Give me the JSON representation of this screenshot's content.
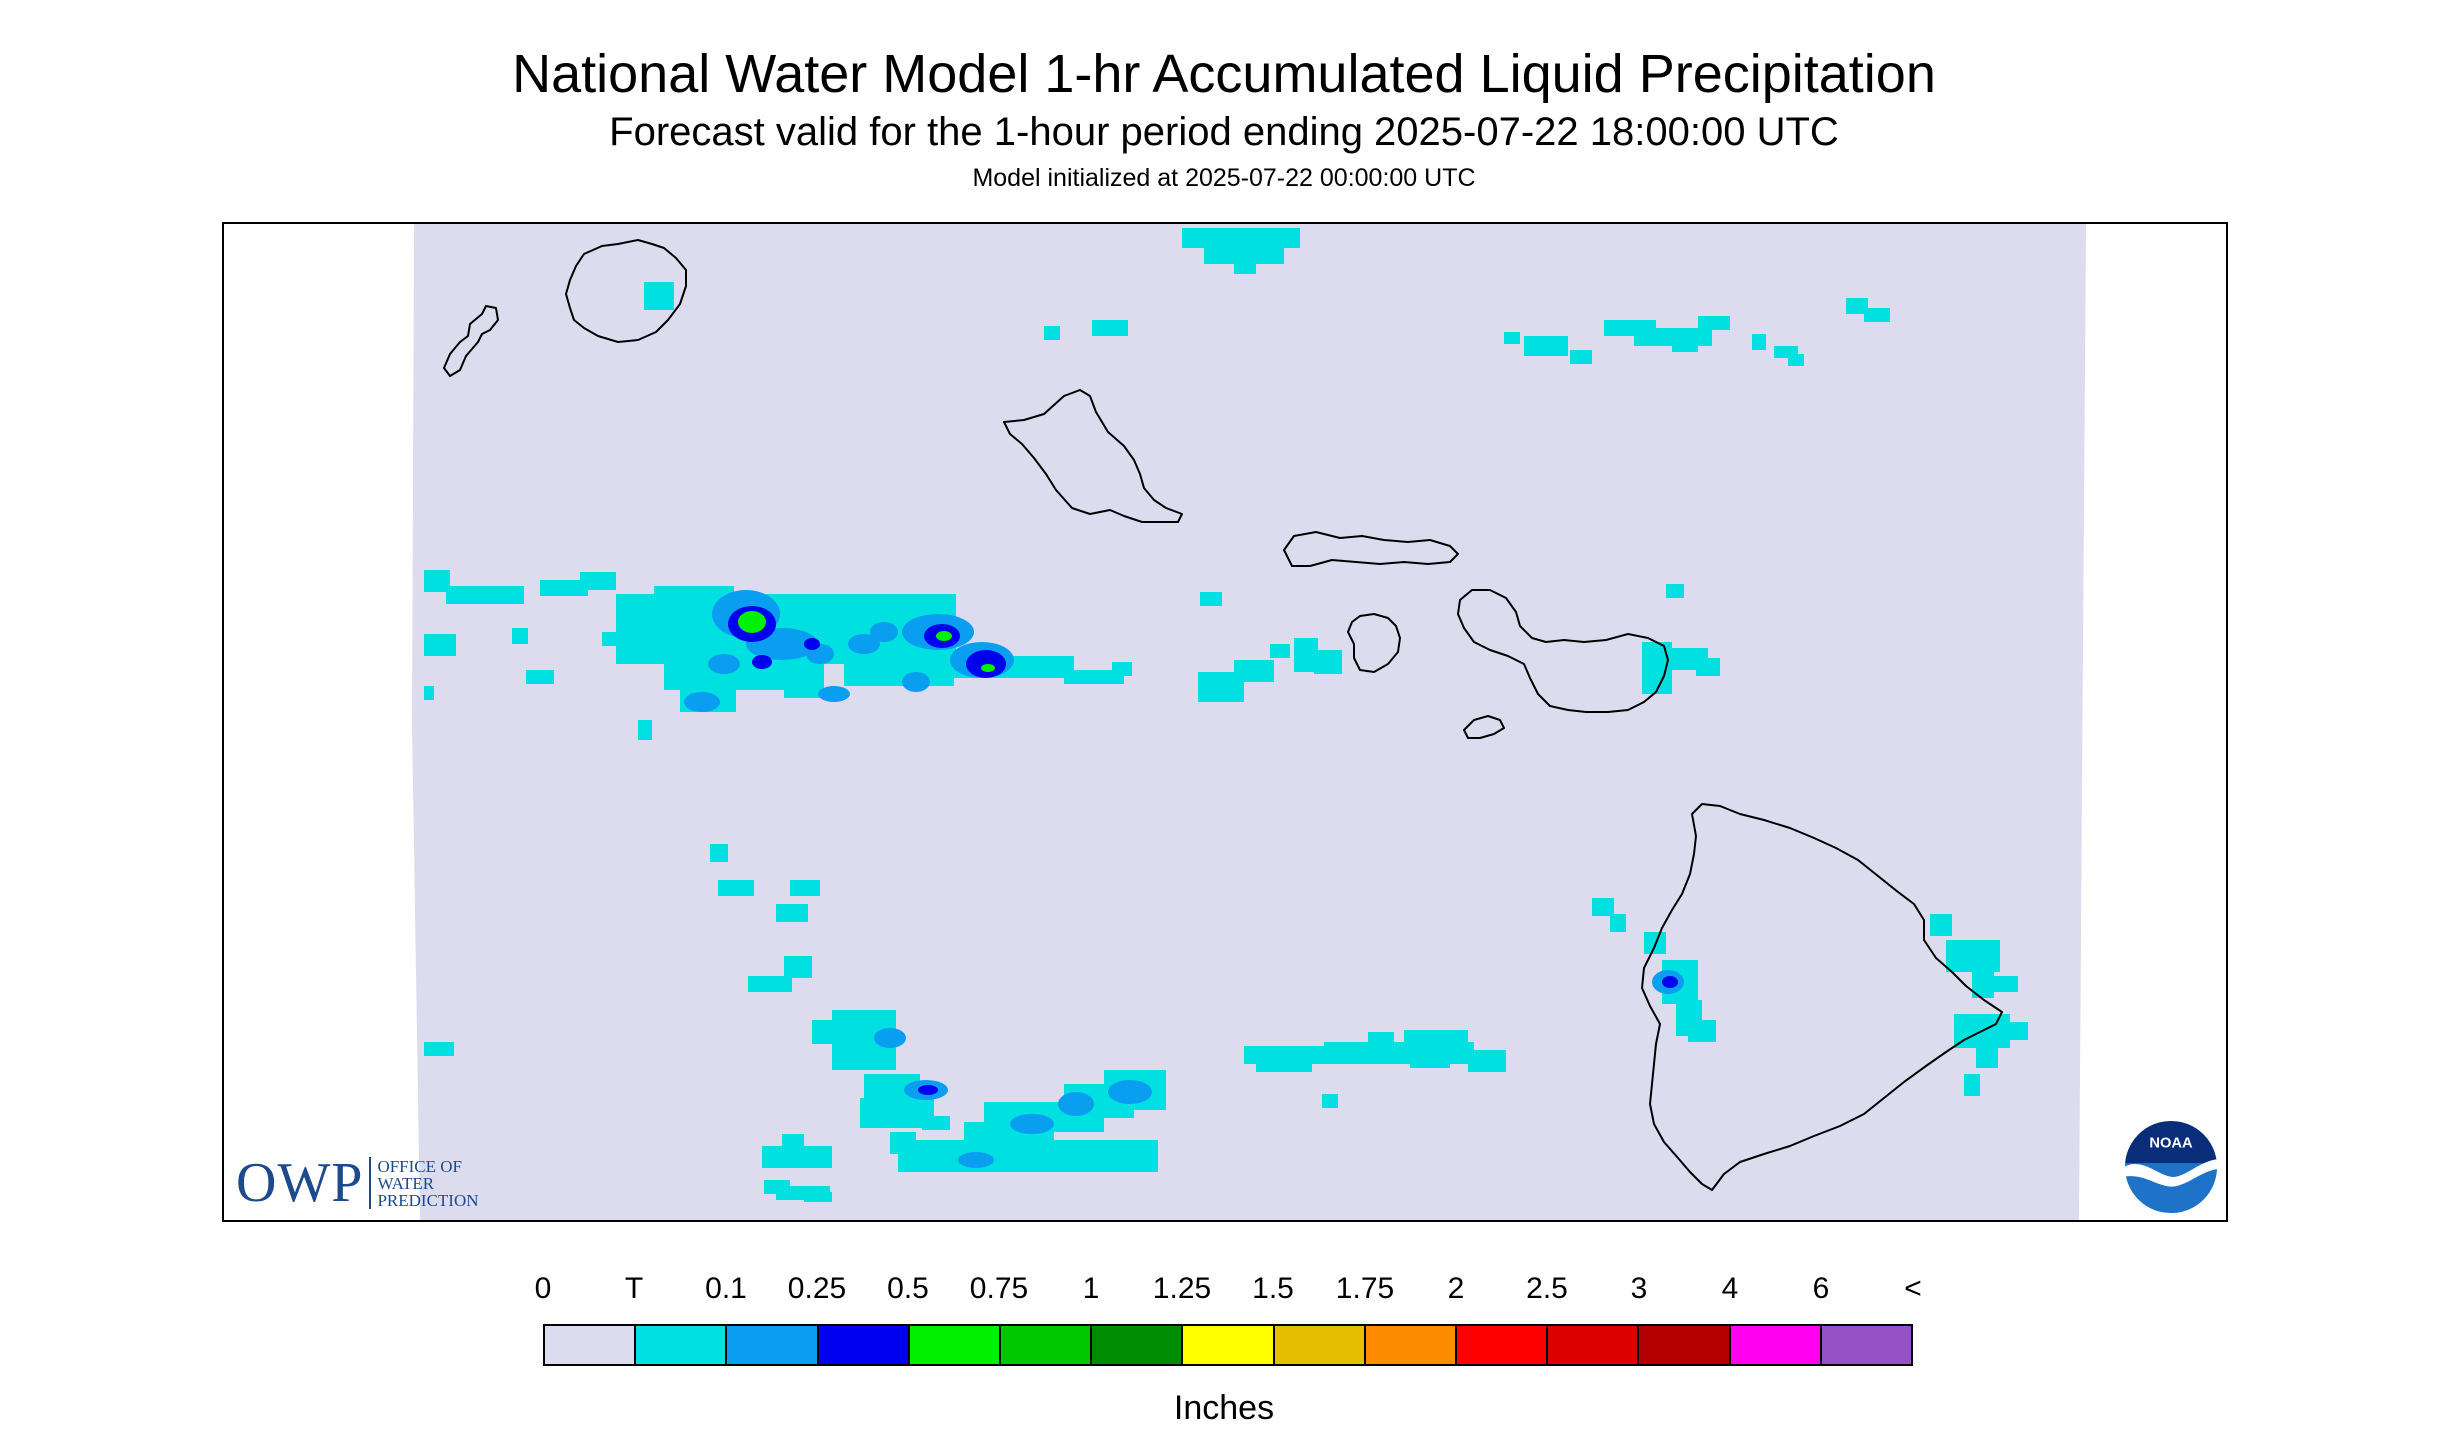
{
  "header": {
    "title": "National Water Model 1-hr Accumulated Liquid Precipitation",
    "subtitle": "Forecast valid for the 1-hour period ending 2025-07-22 18:00:00 UTC",
    "initialized": "Model initialized at 2025-07-22 00:00:00 UTC"
  },
  "map": {
    "region": "Hawaiian Islands",
    "background_color": "#dcdcee",
    "outline_color": "#000000",
    "islands": [
      "Niihau",
      "Kauai",
      "Oahu",
      "Molokai",
      "Lanai",
      "Maui",
      "Kahoolawe",
      "Hawaii"
    ]
  },
  "logos": {
    "owp": {
      "letters": "OWP",
      "line1": "OFFICE OF",
      "line2": "WATER",
      "line3": "PREDICTION",
      "color": "#1c4a8c"
    },
    "noaa": {
      "text": "NOAA",
      "colors": {
        "outer": "#1e73c8",
        "inner": "#0a2d7a",
        "bird": "#ffffff"
      }
    }
  },
  "legend": {
    "labels": [
      "0",
      "T",
      "0.1",
      "0.25",
      "0.5",
      "0.75",
      "1",
      "1.25",
      "1.5",
      "1.75",
      "2",
      "2.5",
      "3",
      "4",
      "6",
      "<"
    ],
    "colors": [
      "#dcdcee",
      "#00e0e0",
      "#0a9ef0",
      "#0000f0",
      "#00f000",
      "#00c800",
      "#008c00",
      "#ffff00",
      "#e6be00",
      "#ff8c00",
      "#ff0000",
      "#dc0000",
      "#b40000",
      "#ff00f0",
      "#9650c8"
    ],
    "units": "Inches"
  }
}
